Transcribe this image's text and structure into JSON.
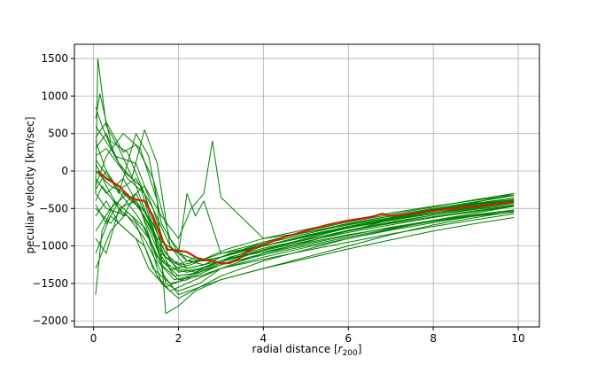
{
  "chart_data": {
    "type": "line",
    "title": "",
    "xlabel": "radial distance [",
    "xlabel_symbol": "r",
    "xlabel_subscript": "200",
    "xlabel_suffix": "]",
    "ylabel": "peculiar velocity [km/sec]",
    "xlim": [
      -0.45,
      10.5
    ],
    "ylim": [
      -2080,
      1690
    ],
    "x_ticks": [
      0,
      2,
      4,
      6,
      8,
      10
    ],
    "x_tick_labels": [
      "0",
      "2",
      "4",
      "6",
      "8",
      "10"
    ],
    "y_ticks": [
      -2000,
      -1500,
      -1000,
      -500,
      0,
      500,
      1000,
      1500
    ],
    "y_tick_labels": [
      "−2000",
      "−1500",
      "−1000",
      "−500",
      "0",
      "500",
      "1000",
      "1500"
    ],
    "grid": true,
    "colors": {
      "individual": "#008000",
      "mean": "#cc2200"
    },
    "mean_profile": {
      "x": [
        0.1,
        0.3,
        0.6,
        0.85,
        1.0,
        1.2,
        1.4,
        1.6,
        1.75,
        2.0,
        2.2,
        2.5,
        2.8,
        3.0,
        3.2,
        3.4,
        3.6,
        4.0,
        4.5,
        5.0,
        5.5,
        6.0,
        6.5,
        6.8,
        7.0,
        7.5,
        8.0,
        8.5,
        9.0,
        9.5,
        9.9
      ],
      "y": [
        0,
        -100,
        -200,
        -350,
        -380,
        -400,
        -600,
        -900,
        -1050,
        -1060,
        -1080,
        -1180,
        -1200,
        -1230,
        -1230,
        -1180,
        -1080,
        -980,
        -880,
        -800,
        -720,
        -660,
        -620,
        -570,
        -600,
        -570,
        -530,
        -500,
        -470,
        -440,
        -410
      ]
    },
    "individual_profiles": [
      {
        "x": [
          0.05,
          0.1,
          0.3,
          0.6,
          1.0,
          1.4,
          1.7,
          2.0,
          2.5,
          3.0,
          4.0,
          5.0,
          6.0,
          7.0,
          8.0,
          9.0,
          9.9
        ],
        "y": [
          -300,
          1500,
          600,
          300,
          -200,
          -800,
          -1500,
          -1600,
          -1500,
          -1300,
          -1100,
          -950,
          -800,
          -650,
          -520,
          -420,
          -300
        ]
      },
      {
        "x": [
          0.05,
          0.15,
          0.4,
          0.8,
          1.2,
          1.6,
          2.0,
          2.5,
          3.0,
          4.0,
          5.0,
          6.0,
          7.0,
          8.0,
          9.0,
          9.9
        ],
        "y": [
          700,
          1030,
          400,
          250,
          -300,
          -1200,
          -1400,
          -1350,
          -1250,
          -1050,
          -900,
          -760,
          -640,
          -540,
          -450,
          -380
        ]
      },
      {
        "x": [
          0.05,
          0.2,
          0.5,
          0.9,
          1.3,
          1.6,
          2.0,
          2.5,
          3.0,
          4.0,
          5.0,
          6.0,
          7.0,
          8.0,
          9.0,
          9.9
        ],
        "y": [
          -1650,
          -800,
          -400,
          -600,
          -900,
          -1500,
          -1700,
          -1550,
          -1400,
          -1200,
          -1050,
          -900,
          -780,
          -660,
          -560,
          -470
        ]
      },
      {
        "x": [
          0.05,
          0.2,
          0.5,
          1.0,
          1.4,
          1.8,
          2.2,
          2.6,
          3.0,
          4.0,
          5.0,
          6.0,
          7.0,
          8.0,
          9.0,
          9.9
        ],
        "y": [
          850,
          600,
          200,
          100,
          -500,
          -1200,
          -1300,
          -1250,
          -1150,
          -950,
          -800,
          -680,
          -580,
          -480,
          -380,
          -300
        ]
      },
      {
        "x": [
          0.05,
          0.3,
          0.7,
          1.1,
          1.5,
          1.7,
          2.0,
          2.4,
          3.0,
          4.0,
          5.0,
          6.0,
          7.0,
          8.0,
          9.0,
          9.9
        ],
        "y": [
          -200,
          200,
          500,
          300,
          -400,
          -1900,
          -1800,
          -1600,
          -1450,
          -1300,
          -1150,
          -1000,
          -850,
          -720,
          -620,
          -540
        ]
      },
      {
        "x": [
          0.05,
          0.3,
          0.6,
          1.0,
          1.3,
          1.6,
          2.0,
          2.5,
          3.0,
          4.0,
          5.0,
          6.0,
          7.0,
          8.0,
          9.0,
          9.9
        ],
        "y": [
          400,
          0,
          -300,
          500,
          200,
          -700,
          -1100,
          -1200,
          -1150,
          -1000,
          -880,
          -760,
          -650,
          -560,
          -470,
          -400
        ]
      },
      {
        "x": [
          0.05,
          0.4,
          0.8,
          1.2,
          1.6,
          2.0,
          2.3,
          2.6,
          2.8,
          3.0,
          4.0,
          5.0,
          6.0,
          7.0,
          8.0,
          9.0,
          9.9
        ],
        "y": [
          -500,
          -700,
          -400,
          -200,
          -600,
          -900,
          -500,
          -300,
          400,
          -350,
          -900,
          -820,
          -720,
          -620,
          -520,
          -440,
          -380
        ]
      },
      {
        "x": [
          0.05,
          0.3,
          0.7,
          1.0,
          1.5,
          2.0,
          2.2,
          2.4,
          2.6,
          3.0,
          4.0,
          5.0,
          6.0,
          7.0,
          8.0,
          9.0,
          9.9
        ],
        "y": [
          100,
          -200,
          -600,
          -300,
          -900,
          -1100,
          -300,
          -600,
          -400,
          -1100,
          -1000,
          -860,
          -740,
          -640,
          -540,
          -460,
          -390
        ]
      },
      {
        "x": [
          0.05,
          0.3,
          0.6,
          1.0,
          1.4,
          1.8,
          2.2,
          2.6,
          3.0,
          4.0,
          5.0,
          6.0,
          7.0,
          8.0,
          9.0,
          9.9
        ],
        "y": [
          -900,
          -1100,
          -500,
          -700,
          -1300,
          -1500,
          -1450,
          -1350,
          -1250,
          -1100,
          -980,
          -860,
          -750,
          -660,
          -580,
          -520
        ]
      },
      {
        "x": [
          0.05,
          0.3,
          0.6,
          0.9,
          1.2,
          1.5,
          1.8,
          2.2,
          2.6,
          3.0,
          4.0,
          5.0,
          6.0,
          7.0,
          8.0,
          9.0,
          9.9
        ],
        "y": [
          300,
          500,
          100,
          -100,
          550,
          100,
          -1000,
          -1200,
          -1250,
          -1200,
          -1050,
          -920,
          -800,
          -690,
          -590,
          -500,
          -430
        ]
      },
      {
        "x": [
          0.05,
          0.4,
          0.8,
          1.2,
          1.5,
          1.8,
          2.2,
          2.6,
          3.0,
          4.0,
          5.0,
          6.0,
          7.0,
          8.0,
          9.0,
          9.9
        ],
        "y": [
          -1100,
          -600,
          -800,
          -1000,
          -1400,
          -1600,
          -1500,
          -1400,
          -1300,
          -1150,
          -1020,
          -900,
          -790,
          -690,
          -600,
          -520
        ]
      },
      {
        "x": [
          0.05,
          0.3,
          0.7,
          1.1,
          1.4,
          1.8,
          2.2,
          2.6,
          3.0,
          4.0,
          5.0,
          6.0,
          7.0,
          8.0,
          9.0,
          9.9
        ],
        "y": [
          200,
          300,
          0,
          -200,
          -800,
          -1300,
          -1350,
          -1300,
          -1200,
          -1000,
          -860,
          -740,
          -630,
          -530,
          -440,
          -360
        ]
      },
      {
        "x": [
          0.05,
          0.2,
          0.6,
          1.0,
          1.4,
          1.7,
          2.0,
          2.4,
          2.8,
          3.2,
          4.0,
          5.0,
          6.0,
          7.0,
          8.0,
          9.0,
          9.9
        ],
        "y": [
          -400,
          -200,
          -500,
          -400,
          -700,
          -1100,
          -1250,
          -1150,
          -1200,
          -1100,
          -1000,
          -880,
          -760,
          -660,
          -570,
          -490,
          -420
        ]
      },
      {
        "x": [
          0.05,
          0.4,
          0.8,
          1.2,
          1.6,
          2.0,
          2.5,
          3.0,
          4.0,
          5.0,
          6.0,
          7.0,
          8.0,
          9.0,
          9.9
        ],
        "y": [
          600,
          300,
          -100,
          -300,
          -1000,
          -1350,
          -1300,
          -1200,
          -1050,
          -920,
          -790,
          -680,
          -590,
          -510,
          -450
        ]
      },
      {
        "x": [
          0.05,
          0.3,
          0.7,
          1.1,
          1.5,
          1.9,
          2.3,
          2.7,
          3.1,
          4.0,
          5.0,
          6.0,
          7.0,
          8.0,
          9.0,
          9.9
        ],
        "y": [
          -100,
          -300,
          -100,
          -500,
          -1200,
          -1450,
          -1400,
          -1300,
          -1200,
          -1060,
          -940,
          -820,
          -720,
          -620,
          -540,
          -470
        ]
      },
      {
        "x": [
          0.05,
          0.3,
          0.6,
          1.0,
          1.3,
          1.7,
          2.1,
          2.5,
          3.0,
          4.0,
          5.0,
          6.0,
          7.0,
          8.0,
          9.0,
          9.9
        ],
        "y": [
          -600,
          -400,
          -700,
          -900,
          -1300,
          -1550,
          -1450,
          -1350,
          -1250,
          -1120,
          -1000,
          -880,
          -770,
          -670,
          -590,
          -530
        ]
      },
      {
        "x": [
          0.05,
          0.4,
          0.9,
          1.3,
          1.7,
          2.1,
          2.5,
          3.0,
          4.0,
          5.0,
          6.0,
          7.0,
          8.0,
          9.0,
          9.9
        ],
        "y": [
          0,
          -200,
          -350,
          -700,
          -1150,
          -1250,
          -1200,
          -1100,
          -950,
          -820,
          -700,
          -600,
          -510,
          -430,
          -360
        ]
      },
      {
        "x": [
          0.05,
          0.3,
          0.8,
          1.2,
          1.6,
          2.0,
          2.5,
          3.0,
          4.0,
          5.0,
          6.0,
          7.0,
          8.0,
          9.0,
          9.9
        ],
        "y": [
          -300,
          -500,
          -600,
          -900,
          -1350,
          -1650,
          -1550,
          -1450,
          -1300,
          -1170,
          -1040,
          -920,
          -800,
          -700,
          -620
        ]
      },
      {
        "x": [
          0.05,
          0.3,
          0.7,
          1.0,
          1.4,
          1.8,
          2.2,
          2.6,
          3.0,
          4.0,
          5.0,
          6.0,
          7.0,
          8.0,
          9.0,
          9.9
        ],
        "y": [
          450,
          650,
          250,
          350,
          -100,
          -900,
          -1200,
          -1200,
          -1150,
          -1000,
          -870,
          -750,
          -650,
          -560,
          -480,
          -410
        ]
      },
      {
        "x": [
          0.05,
          0.4,
          0.8,
          1.2,
          1.6,
          2.0,
          2.4,
          2.8,
          3.2,
          4.0,
          5.0,
          6.0,
          7.0,
          8.0,
          9.0,
          9.9
        ],
        "y": [
          -800,
          -500,
          -300,
          -600,
          -1100,
          -1300,
          -1350,
          -1250,
          -1150,
          -1030,
          -910,
          -800,
          -700,
          -610,
          -530,
          -460
        ]
      },
      {
        "x": [
          0.05,
          0.3,
          0.6,
          1.0,
          1.4,
          1.8,
          2.2,
          2.6,
          3.0,
          4.0,
          5.0,
          6.0,
          7.0,
          8.0,
          9.0,
          9.9
        ],
        "y": [
          -250,
          0,
          -250,
          -100,
          -500,
          -1000,
          -1300,
          -1250,
          -1150,
          -970,
          -840,
          -710,
          -600,
          -500,
          -410,
          -330
        ]
      },
      {
        "x": [
          0.05,
          0.3,
          0.7,
          1.1,
          1.5,
          1.9,
          2.3,
          2.7,
          3.1,
          4.0,
          5.0,
          6.0,
          7.0,
          8.0,
          9.0,
          9.9
        ],
        "y": [
          -450,
          -700,
          -300,
          -500,
          -1050,
          -1400,
          -1380,
          -1280,
          -1180,
          -1080,
          -960,
          -850,
          -760,
          -670,
          -600,
          -550
        ]
      },
      {
        "x": [
          0.05,
          0.4,
          0.8,
          1.2,
          1.6,
          2.0,
          2.5,
          3.0,
          4.0,
          5.0,
          6.0,
          7.0,
          8.0,
          9.0,
          9.9
        ],
        "y": [
          -1300,
          -800,
          -550,
          -750,
          -1250,
          -1450,
          -1400,
          -1300,
          -1180,
          -1060,
          -950,
          -840,
          -740,
          -650,
          -570
        ]
      },
      {
        "x": [
          0.05,
          0.3,
          0.7,
          1.1,
          1.5,
          1.9,
          2.3,
          2.7,
          3.1,
          4.0,
          5.0,
          6.0,
          7.0,
          8.0,
          9.0,
          9.9
        ],
        "y": [
          150,
          -50,
          -350,
          -650,
          -1150,
          -1300,
          -1250,
          -1150,
          -1050,
          -900,
          -780,
          -660,
          -560,
          -470,
          -390,
          -320
        ]
      }
    ]
  }
}
